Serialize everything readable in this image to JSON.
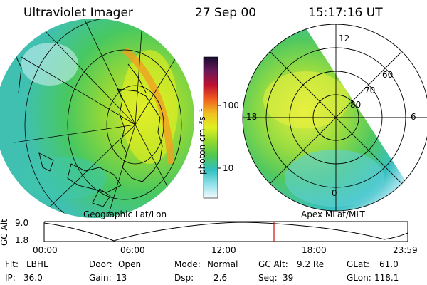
{
  "header": {
    "instrument": "Ultraviolet Imager",
    "date": "27 Sep 00",
    "time": "15:17:16 UT"
  },
  "colorbar": {
    "label": "photon cm⁻²s⁻¹",
    "ticks": [
      "100",
      "10"
    ],
    "colors": [
      "#2a0a3a",
      "#5a1a6a",
      "#8a1a40",
      "#c0102a",
      "#e8402a",
      "#f08a20",
      "#f0c020",
      "#e8f020",
      "#b8e830",
      "#80d830",
      "#48c848",
      "#28c0a0",
      "#30c8d8",
      "#80dce8",
      "#c8eef2",
      "#f2fafb"
    ]
  },
  "left_map": {
    "caption": "Geographic Lat/Lon"
  },
  "right_map": {
    "caption": "Apex MLat/MLT",
    "mlt_labels": [
      "12",
      "18",
      "6",
      "0"
    ],
    "lat_labels": [
      "60",
      "70",
      "80"
    ]
  },
  "timeline": {
    "ylabel": "GC Alt",
    "y_ticks": [
      "9.0",
      "1.8"
    ],
    "x_ticks": [
      "00:00",
      "06:00",
      "12:00",
      "18:00",
      "23:59"
    ],
    "marker_color": "#d01010"
  },
  "status": {
    "row1": [
      {
        "label": "Flt:",
        "value": "LBHL"
      },
      {
        "label": "Door:",
        "value": "Open"
      },
      {
        "label": "Mode:",
        "value": "Normal"
      },
      {
        "label": "GC Alt:",
        "value": "9.2 Re"
      },
      {
        "label": "GLat:",
        "value": "61.0"
      }
    ],
    "row2": [
      {
        "label": "IP:",
        "value": "36.0"
      },
      {
        "label": "Gain:",
        "value": "13"
      },
      {
        "label": "Dsp:",
        "value": "2.6"
      },
      {
        "label": "Seq:",
        "value": "39"
      },
      {
        "label": "GLon:",
        "value": "118.1"
      }
    ]
  }
}
